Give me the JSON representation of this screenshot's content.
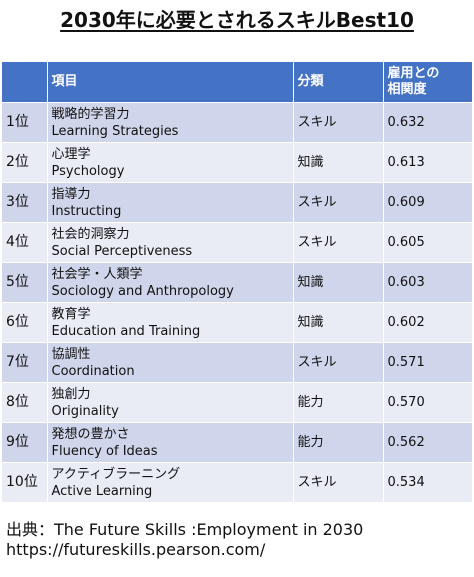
{
  "title": "2030年に必要とされるスキルBest10",
  "table": {
    "header": [
      "項目",
      "分類",
      "雇用との\n相関度"
    ],
    "rows": [
      [
        "1位",
        "戦略的学習力",
        "Learning Strategies",
        "スキル",
        "0.632"
      ],
      [
        "2位",
        "心理学",
        "Psychology",
        "知識",
        "0.613"
      ],
      [
        "3位",
        "指導力",
        "Instructing",
        "スキル",
        "0.609"
      ],
      [
        "4位",
        "社会的洞察力",
        "Social Perceptiveness",
        "スキル",
        "0.605"
      ],
      [
        "5位",
        "社会学・人類学",
        "Sociology and Anthropology",
        "知識",
        "0.603"
      ],
      [
        "6位",
        "教育学",
        "Education and Training",
        "知識",
        "0.602"
      ],
      [
        "7位",
        "協調性",
        "Coordination",
        "スキル",
        "0.571"
      ],
      [
        "8位",
        "独創力",
        "Originality",
        "能力",
        "0.570"
      ],
      [
        "9位",
        "発想の豊かさ",
        "Fluency of Ideas",
        "能力",
        "0.562"
      ],
      [
        "10位",
        "アクティブラーニング",
        "Active Learning",
        "スキル",
        "0.534"
      ]
    ]
  },
  "footer": {
    "source": "出典：The Future Skills :Employment in 2030",
    "url": "https://futureskills.pearson.com/"
  }
}
